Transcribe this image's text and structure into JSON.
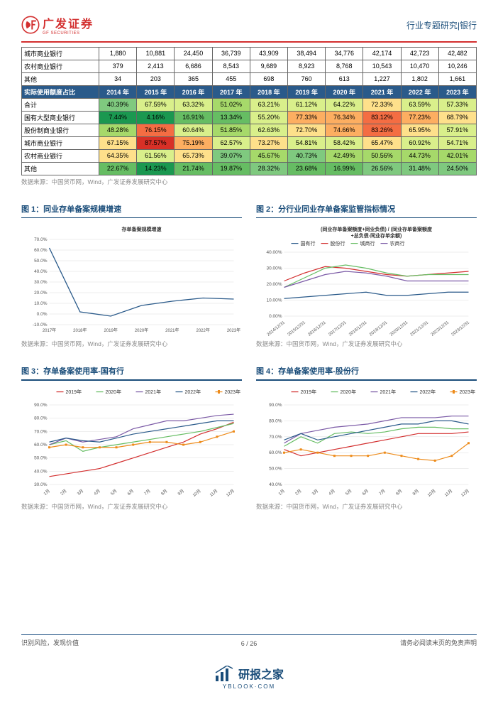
{
  "header": {
    "logo_main": "广发证券",
    "logo_sub": "GF SECURITIES",
    "right": "行业专题研究|银行"
  },
  "table1": {
    "rows": [
      {
        "label": "城市商业银行",
        "vals": [
          "1,880",
          "10,881",
          "24,450",
          "36,739",
          "43,909",
          "38,494",
          "34,776",
          "42,174",
          "42,723",
          "42,482"
        ]
      },
      {
        "label": "农村商业银行",
        "vals": [
          "379",
          "2,413",
          "6,686",
          "8,543",
          "9,689",
          "8,923",
          "8,768",
          "10,543",
          "10,470",
          "10,246"
        ]
      },
      {
        "label": "其他",
        "vals": [
          "34",
          "203",
          "365",
          "455",
          "698",
          "760",
          "613",
          "1,227",
          "1,802",
          "1,661"
        ]
      }
    ],
    "header2": {
      "label": "实际使用额度占比",
      "years": [
        "2014 年",
        "2015 年",
        "2016 年",
        "2017 年",
        "2018 年",
        "2019 年",
        "2020 年",
        "2021 年",
        "2022 年",
        "2023 年"
      ]
    },
    "rows2": [
      {
        "label": "合计",
        "vals": [
          "40.39%",
          "67.59%",
          "63.32%",
          "51.02%",
          "63.21%",
          "61.12%",
          "64.22%",
          "72.33%",
          "63.59%",
          "57.33%"
        ],
        "colors": [
          "#7fc97f",
          "#d9ef8b",
          "#d9ef8b",
          "#a6d96a",
          "#d9ef8b",
          "#d9ef8b",
          "#d9ef8b",
          "#fee08b",
          "#d9ef8b",
          "#d9ef8b"
        ]
      },
      {
        "label": "国有大型商业银行",
        "vals": [
          "7.44%",
          "4.16%",
          "16.91%",
          "13.34%",
          "55.20%",
          "77.33%",
          "76.34%",
          "83.12%",
          "77.23%",
          "68.79%"
        ],
        "colors": [
          "#1a9850",
          "#1a9850",
          "#66bd63",
          "#66bd63",
          "#d9ef8b",
          "#fdae61",
          "#fdae61",
          "#f46d43",
          "#fdae61",
          "#fee08b"
        ]
      },
      {
        "label": "股份制商业银行",
        "vals": [
          "48.28%",
          "76.15%",
          "60.64%",
          "51.85%",
          "62.63%",
          "72.70%",
          "74.66%",
          "83.26%",
          "65.95%",
          "57.91%"
        ],
        "colors": [
          "#a6d96a",
          "#f46d43",
          "#d9ef8b",
          "#a6d96a",
          "#d9ef8b",
          "#fee08b",
          "#fdae61",
          "#f46d43",
          "#fee08b",
          "#d9ef8b"
        ]
      },
      {
        "label": "城市商业银行",
        "vals": [
          "67.15%",
          "87.57%",
          "75.19%",
          "62.57%",
          "73.27%",
          "54.81%",
          "58.42%",
          "65.47%",
          "60.92%",
          "54.71%"
        ],
        "colors": [
          "#fee08b",
          "#d73027",
          "#fdae61",
          "#d9ef8b",
          "#fee08b",
          "#d9ef8b",
          "#d9ef8b",
          "#fee08b",
          "#d9ef8b",
          "#d9ef8b"
        ]
      },
      {
        "label": "农村商业银行",
        "vals": [
          "64.35%",
          "61.56%",
          "65.73%",
          "39.07%",
          "45.67%",
          "40.73%",
          "42.49%",
          "50.56%",
          "44.73%",
          "42.01%"
        ],
        "colors": [
          "#fee08b",
          "#d9ef8b",
          "#fee08b",
          "#7fc97f",
          "#a6d96a",
          "#7fc97f",
          "#a6d96a",
          "#a6d96a",
          "#a6d96a",
          "#a6d96a"
        ]
      },
      {
        "label": "其他",
        "vals": [
          "22.67%",
          "14.23%",
          "21.74%",
          "19.87%",
          "28.32%",
          "23.68%",
          "16.99%",
          "26.56%",
          "31.48%",
          "24.50%"
        ],
        "colors": [
          "#66bd63",
          "#1a9850",
          "#66bd63",
          "#66bd63",
          "#7fc97f",
          "#66bd63",
          "#66bd63",
          "#7fc97f",
          "#7fc97f",
          "#7fc97f"
        ]
      }
    ],
    "source": "数据来源：中国货币网，Wind，广发证券发展研究中心"
  },
  "chart1": {
    "title": "图 1：同业存单备案规模增速",
    "subtitle": "存单备案规模增速",
    "ylabels": [
      "-10.0%",
      "0.0%",
      "10.0%",
      "20.0%",
      "30.0%",
      "40.0%",
      "50.0%",
      "60.0%",
      "70.0%"
    ],
    "xlabels": [
      "2017年",
      "2018年",
      "2019年",
      "2020年",
      "2021年",
      "2022年",
      "2023年"
    ],
    "data": [
      62,
      2,
      -2,
      8,
      12,
      15,
      14
    ],
    "ymin": -10,
    "ymax": 70,
    "color": "#2a5a8a",
    "source": "数据来源：中国货币网，Wind，广发证券发展研究中心"
  },
  "chart2": {
    "title": "图 2：分行业同业存单备案监管指标情况",
    "subtitle": "(同业存单备案额度+同业负债) / (同业存单备案额度\n+总负债-同业存单余额)",
    "legend": [
      {
        "name": "国有行",
        "color": "#2a5a8a"
      },
      {
        "name": "股份行",
        "color": "#d32f2f"
      },
      {
        "name": "城商行",
        "color": "#66bd63"
      },
      {
        "name": "农商行",
        "color": "#7b5aa6"
      }
    ],
    "ylabels": [
      "0.00%",
      "10.00%",
      "20.00%",
      "30.00%",
      "40.00%"
    ],
    "xlabels": [
      "2014/12/31",
      "2015/12/31",
      "2016/12/31",
      "2017/12/31",
      "2018/12/31",
      "2019/12/31",
      "2020/12/31",
      "2021/12/31",
      "2022/12/31",
      "2023/12/31"
    ],
    "series": {
      "国有行": [
        11,
        12,
        13,
        14,
        15,
        13,
        13,
        14,
        15,
        15
      ],
      "股份行": [
        22,
        27,
        31,
        30,
        28,
        26,
        25,
        26,
        27,
        28
      ],
      "城商行": [
        18,
        24,
        30,
        32,
        30,
        27,
        25,
        26,
        26,
        26
      ],
      "农商行": [
        18,
        22,
        26,
        28,
        27,
        25,
        22,
        22,
        22,
        22
      ]
    },
    "ymin": 0,
    "ymax": 40,
    "source": "数据来源：中国货币网，Wind，广发证券发展研究中心"
  },
  "chart3": {
    "title": "图 3：存单备案使用率-国有行",
    "legend": [
      {
        "name": "2019年",
        "color": "#d32f2f"
      },
      {
        "name": "2020年",
        "color": "#66bd63"
      },
      {
        "name": "2021年",
        "color": "#7b5aa6"
      },
      {
        "name": "2022年",
        "color": "#2a5a8a"
      },
      {
        "name": "2023年",
        "color": "#ed8b1a",
        "marker": true
      }
    ],
    "ylabels": [
      "30.0%",
      "40.0%",
      "50.0%",
      "60.0%",
      "70.0%",
      "80.0%",
      "90.0%"
    ],
    "xlabels": [
      "1月",
      "2月",
      "3月",
      "4月",
      "5月",
      "6月",
      "7月",
      "8月",
      "9月",
      "10月",
      "11月",
      "12月"
    ],
    "series": {
      "2019年": [
        36,
        38,
        40,
        42,
        46,
        50,
        54,
        58,
        62,
        68,
        72,
        77
      ],
      "2020年": [
        60,
        63,
        55,
        58,
        60,
        62,
        64,
        66,
        68,
        70,
        73,
        76
      ],
      "2021年": [
        60,
        65,
        62,
        64,
        66,
        72,
        75,
        78,
        78,
        80,
        82,
        83
      ],
      "2022年": [
        62,
        65,
        63,
        62,
        65,
        68,
        70,
        72,
        74,
        76,
        78,
        78
      ],
      "2023年": [
        58,
        60,
        58,
        58,
        58,
        60,
        62,
        62,
        60,
        62,
        66,
        70
      ]
    },
    "ymin": 30,
    "ymax": 90,
    "source": "数据来源：中国货币网，Wind，广发证券发展研究中心"
  },
  "chart4": {
    "title": "图 4：存单备案使用率-股份行",
    "legend": [
      {
        "name": "2019年",
        "color": "#d32f2f"
      },
      {
        "name": "2020年",
        "color": "#66bd63"
      },
      {
        "name": "2021年",
        "color": "#7b5aa6"
      },
      {
        "name": "2022年",
        "color": "#2a5a8a"
      },
      {
        "name": "2023年",
        "color": "#ed8b1a",
        "marker": true
      }
    ],
    "ylabels": [
      "40.0%",
      "50.0%",
      "60.0%",
      "70.0%",
      "80.0%",
      "90.0%"
    ],
    "xlabels": [
      "1月",
      "2月",
      "3月",
      "4月",
      "5月",
      "6月",
      "7月",
      "8月",
      "9月",
      "10月",
      "11月",
      "12月"
    ],
    "series": {
      "2019年": [
        62,
        58,
        60,
        62,
        64,
        66,
        68,
        70,
        72,
        72,
        72,
        73
      ],
      "2020年": [
        64,
        70,
        66,
        72,
        73,
        72,
        73,
        75,
        76,
        76,
        75,
        75
      ],
      "2021年": [
        66,
        72,
        74,
        76,
        77,
        78,
        80,
        82,
        82,
        82,
        83,
        83
      ],
      "2022年": [
        68,
        72,
        68,
        70,
        72,
        74,
        76,
        78,
        78,
        80,
        80,
        78
      ],
      "2023年": [
        60,
        62,
        60,
        58,
        58,
        58,
        60,
        58,
        56,
        55,
        58,
        66
      ]
    },
    "ymin": 40,
    "ymax": 90,
    "source": "数据来源：中国货币网，Wind，广发证券发展研究中心"
  },
  "footer": {
    "left": "识别风险，发现价值",
    "right": "请务必阅读末页的免责声明",
    "page": "6 / 26",
    "brand": "研报之家",
    "url": "YBLOOK·COM"
  }
}
